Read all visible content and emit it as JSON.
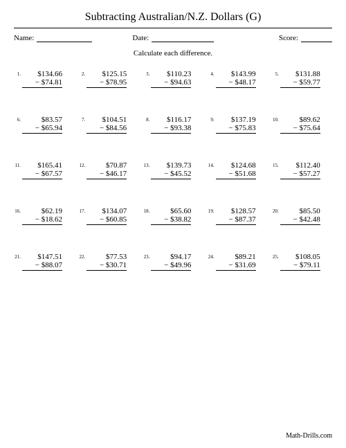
{
  "title": "Subtracting Australian/N.Z. Dollars (G)",
  "header": {
    "name_label": "Name:",
    "date_label": "Date:",
    "score_label": "Score:"
  },
  "instruction": "Calculate each difference.",
  "footer": "Math-Drills.com",
  "problems": [
    {
      "n": "1.",
      "a": "$134.66",
      "b": "− $74.81"
    },
    {
      "n": "2.",
      "a": "$125.15",
      "b": "− $78.95"
    },
    {
      "n": "3.",
      "a": "$110.23",
      "b": "− $94.63"
    },
    {
      "n": "4.",
      "a": "$143.99",
      "b": "− $48.17"
    },
    {
      "n": "5.",
      "a": "$131.88",
      "b": "− $59.77"
    },
    {
      "n": "6.",
      "a": "$83.57",
      "b": "− $65.94"
    },
    {
      "n": "7.",
      "a": "$104.51",
      "b": "− $84.56"
    },
    {
      "n": "8.",
      "a": "$116.17",
      "b": "− $93.38"
    },
    {
      "n": "9.",
      "a": "$137.19",
      "b": "− $75.83"
    },
    {
      "n": "10.",
      "a": "$89.62",
      "b": "− $75.64"
    },
    {
      "n": "11.",
      "a": "$165.41",
      "b": "− $67.57"
    },
    {
      "n": "12.",
      "a": "$70.87",
      "b": "− $46.17"
    },
    {
      "n": "13.",
      "a": "$139.73",
      "b": "− $45.52"
    },
    {
      "n": "14.",
      "a": "$124.68",
      "b": "− $51.68"
    },
    {
      "n": "15.",
      "a": "$112.40",
      "b": "− $57.27"
    },
    {
      "n": "16.",
      "a": "$62.19",
      "b": "− $18.62"
    },
    {
      "n": "17.",
      "a": "$134.07",
      "b": "− $60.85"
    },
    {
      "n": "18.",
      "a": "$65.60",
      "b": "− $38.82"
    },
    {
      "n": "19.",
      "a": "$128.57",
      "b": "− $87.37"
    },
    {
      "n": "20.",
      "a": "$85.50",
      "b": "− $42.48"
    },
    {
      "n": "21.",
      "a": "$147.51",
      "b": "− $88.07"
    },
    {
      "n": "22.",
      "a": "$77.53",
      "b": "− $30.71"
    },
    {
      "n": "23.",
      "a": "$94.17",
      "b": "− $49.96"
    },
    {
      "n": "24.",
      "a": "$89.21",
      "b": "− $31.69"
    },
    {
      "n": "25.",
      "a": "$108.05",
      "b": "− $79.11"
    }
  ]
}
